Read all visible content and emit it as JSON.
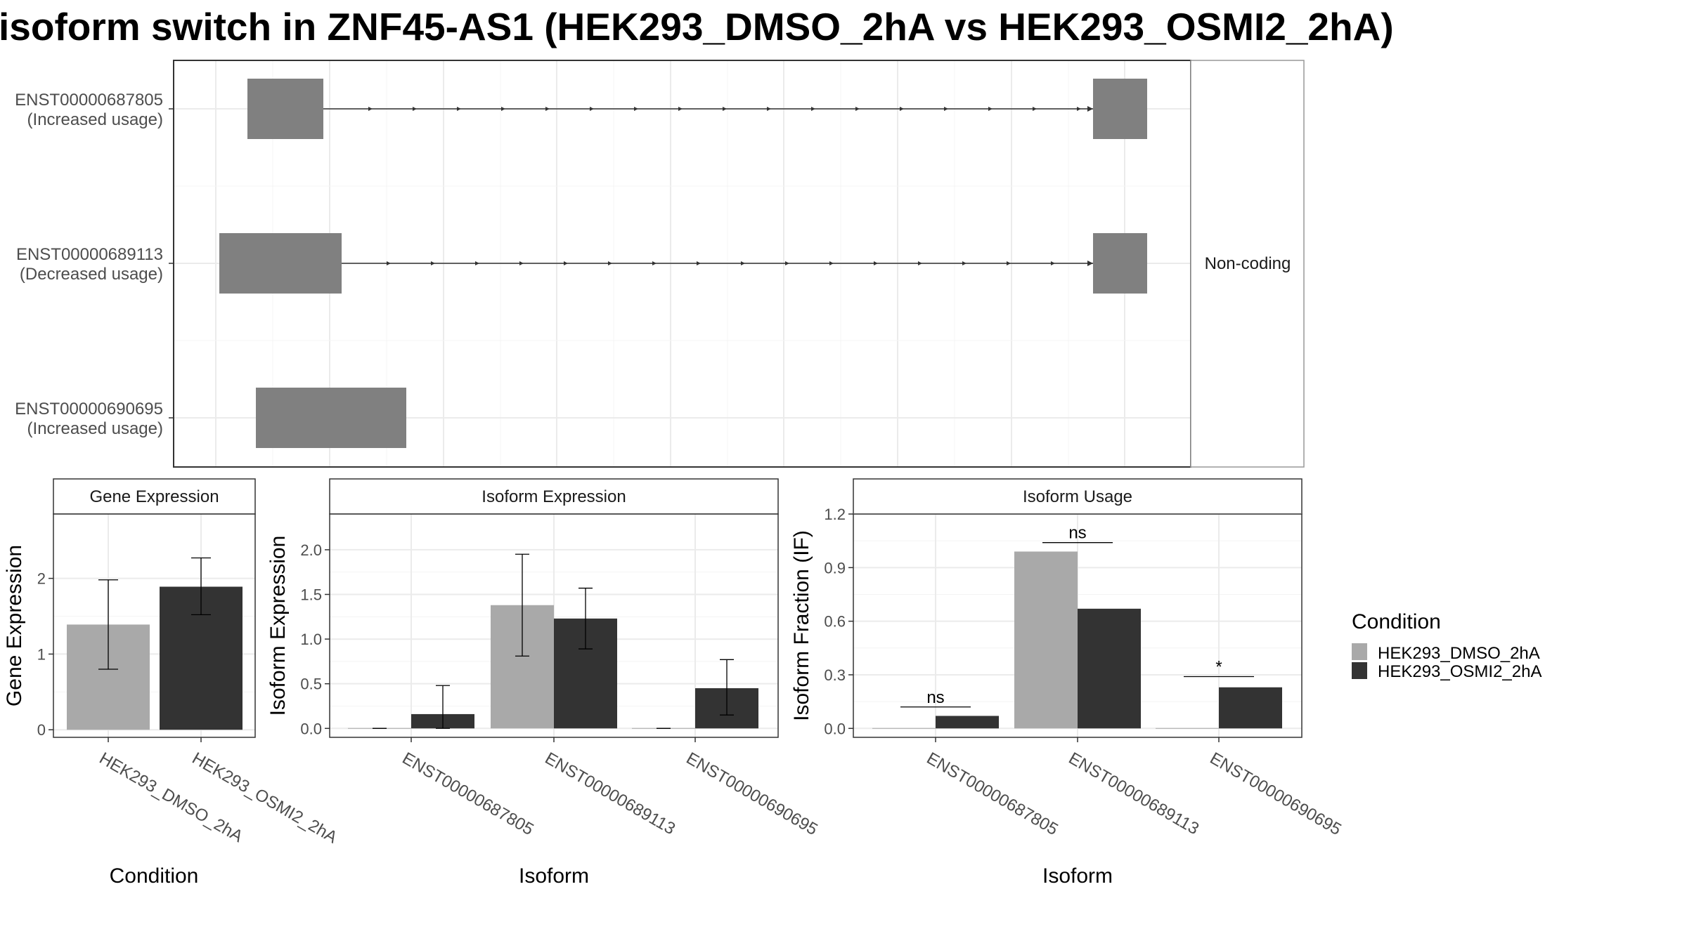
{
  "title": "isoform switch in ZNF45-AS1 (HEK293_DMSO_2hA vs HEK293_OSMI2_2hA)",
  "colors": {
    "dmso": "#a9a9a9",
    "osmi": "#333333",
    "exon": "#808080",
    "grid": "#ebebeb",
    "border": "#333333",
    "strip_border": "#999999"
  },
  "structure_panel": {
    "strip_label": "Non-coding",
    "transcripts": [
      {
        "id": "ENST00000687805",
        "usage": "(Increased usage)"
      },
      {
        "id": "ENST00000689113",
        "usage": "(Decreased usage)"
      },
      {
        "id": "ENST00000690695",
        "usage": "(Increased usage)"
      }
    ]
  },
  "legend": {
    "title": "Condition",
    "entries": [
      "HEK293_DMSO_2hA",
      "HEK293_OSMI2_2hA"
    ]
  },
  "chart_data": [
    {
      "type": "bar",
      "title": "Gene Expression",
      "xlabel": "Condition",
      "ylabel": "Gene Expression",
      "ylim": [
        -0.1,
        2.85
      ],
      "yticks": [
        0,
        1,
        2
      ],
      "categories": [
        "HEK293_DMSO_2hA",
        "HEK293_OSMI2_2hA"
      ],
      "values": [
        1.39,
        1.89
      ],
      "errors": [
        [
          0.8,
          1.98
        ],
        [
          1.52,
          2.27
        ]
      ]
    },
    {
      "type": "bar",
      "title": "Isoform Expression",
      "xlabel": "Isoform",
      "ylabel": "Isoform Expression",
      "ylim": [
        -0.1,
        2.4
      ],
      "yticks": [
        0,
        0.5,
        1,
        1.5,
        2
      ],
      "ytick_labels": [
        "0.0",
        "0.5",
        "1.0",
        "1.5",
        "2.0"
      ],
      "categories": [
        "ENST00000687805",
        "ENST00000689113",
        "ENST00000690695"
      ],
      "series": [
        {
          "name": "HEK293_DMSO_2hA",
          "values": [
            0.0,
            1.38,
            0.0
          ],
          "errors": [
            [
              0.0,
              0.0
            ],
            [
              0.81,
              1.95
            ],
            [
              0.0,
              0.0
            ]
          ]
        },
        {
          "name": "HEK293_OSMI2_2hA",
          "values": [
            0.16,
            1.23,
            0.45
          ],
          "errors": [
            [
              0.0,
              0.48
            ],
            [
              0.89,
              1.57
            ],
            [
              0.15,
              0.77
            ]
          ]
        }
      ]
    },
    {
      "type": "bar",
      "title": "Isoform Usage",
      "xlabel": "Isoform",
      "ylabel": "Isoform Fraction (IF)",
      "ylim": [
        -0.05,
        1.2
      ],
      "yticks": [
        0,
        0.3,
        0.6,
        0.9,
        1.2
      ],
      "ytick_labels": [
        "0.0",
        "0.3",
        "0.6",
        "0.9",
        "1.2"
      ],
      "categories": [
        "ENST00000687805",
        "ENST00000689113",
        "ENST00000690695"
      ],
      "series": [
        {
          "name": "HEK293_DMSO_2hA",
          "values": [
            0.0,
            0.99,
            0.0
          ]
        },
        {
          "name": "HEK293_OSMI2_2hA",
          "values": [
            0.07,
            0.67,
            0.23
          ]
        }
      ],
      "annotations": [
        {
          "category": "ENST00000687805",
          "label": "ns",
          "y": 0.12
        },
        {
          "category": "ENST00000689113",
          "label": "ns",
          "y": 1.04
        },
        {
          "category": "ENST00000690695",
          "label": "*",
          "y": 0.29
        }
      ]
    }
  ]
}
